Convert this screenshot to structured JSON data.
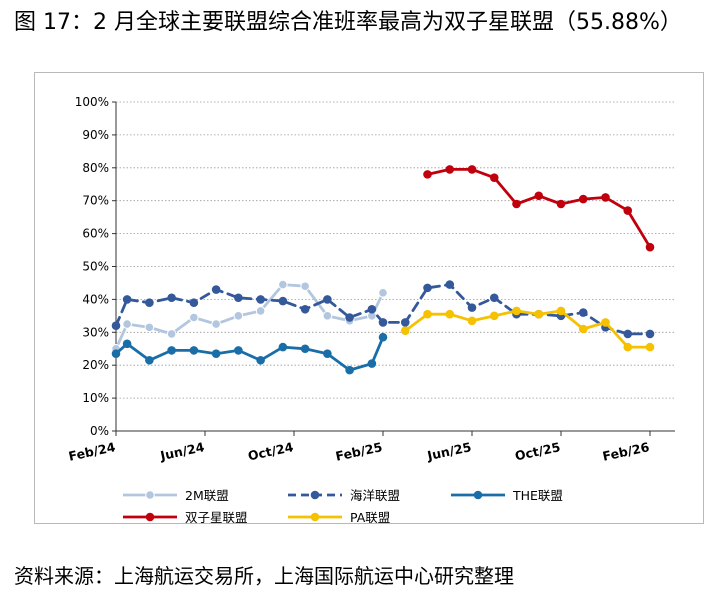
{
  "title": "图 17：2 月全球主要联盟综合准班率最高为双子星联盟（55.88%）",
  "source": "资料来源：上海航运交易所，上海国际航运中心研究整理",
  "chart_data": {
    "type": "line",
    "y_tick_labels": [
      "0%",
      "10%",
      "20%",
      "30%",
      "40%",
      "50%",
      "60%",
      "70%",
      "80%",
      "90%",
      "100%"
    ],
    "ylim": [
      0,
      100
    ],
    "x_tick_labels": [
      "Feb/24",
      "Jun/24",
      "Oct/24",
      "Feb/25",
      "Jun/25",
      "Oct/25",
      "Feb/26"
    ],
    "x_tick_positions": [
      0,
      4,
      8,
      12,
      16,
      20,
      24
    ],
    "xlim": [
      0,
      25
    ],
    "grid": true,
    "legend_position": "bottom",
    "series": [
      {
        "name": "2M联盟",
        "color": "#b3c6e0",
        "dash": "solid",
        "x": [
          0,
          0.5,
          1.5,
          2.5,
          3.5,
          4.5,
          5.5,
          6.5,
          7.5,
          8.5,
          9.5,
          10.5,
          11.5,
          12
        ],
        "values": [
          25,
          32.5,
          31.5,
          29.5,
          34.5,
          32.5,
          35,
          36.5,
          44.5,
          44,
          35,
          33.5,
          35,
          42
        ]
      },
      {
        "name": "海洋联盟",
        "color": "#34589a",
        "dash": "dashed",
        "x": [
          0,
          0.5,
          1.5,
          2.5,
          3.5,
          4.5,
          5.5,
          6.5,
          7.5,
          8.5,
          9.5,
          10.5,
          11.5,
          12,
          13,
          14,
          15,
          16,
          17,
          18,
          19,
          20,
          21,
          22,
          23,
          24
        ],
        "values": [
          32,
          40,
          39,
          40.5,
          39,
          43,
          40.5,
          40,
          39.5,
          37,
          40,
          34.5,
          37,
          33,
          33,
          43.5,
          44.5,
          37.5,
          40.5,
          35.5,
          35.5,
          35,
          36,
          31.5,
          29.5,
          29.5
        ]
      },
      {
        "name": "THE联盟",
        "color": "#1a6ea8",
        "dash": "solid",
        "x": [
          0,
          0.5,
          1.5,
          2.5,
          3.5,
          4.5,
          5.5,
          6.5,
          7.5,
          8.5,
          9.5,
          10.5,
          11.5,
          12
        ],
        "values": [
          23.5,
          26.5,
          21.5,
          24.5,
          24.5,
          23.5,
          24.5,
          21.5,
          25.5,
          25,
          23.5,
          18.5,
          20.5,
          28.5
        ]
      },
      {
        "name": "双子星联盟",
        "color": "#c0000c",
        "dash": "solid",
        "x": [
          14,
          15,
          16,
          17,
          18,
          19,
          20,
          21,
          22,
          23,
          24
        ],
        "values": [
          78,
          79.5,
          79.5,
          77,
          69,
          71.5,
          69,
          70.5,
          71,
          67,
          55.88
        ]
      },
      {
        "name": "PA联盟",
        "color": "#f5c100",
        "dash": "solid",
        "x": [
          13,
          14,
          15,
          16,
          17,
          18,
          19,
          20,
          21,
          22,
          23,
          24
        ],
        "values": [
          30.5,
          35.5,
          35.5,
          33.5,
          35,
          36.5,
          35.5,
          36.5,
          31,
          33,
          25.5,
          25.5
        ]
      }
    ]
  }
}
